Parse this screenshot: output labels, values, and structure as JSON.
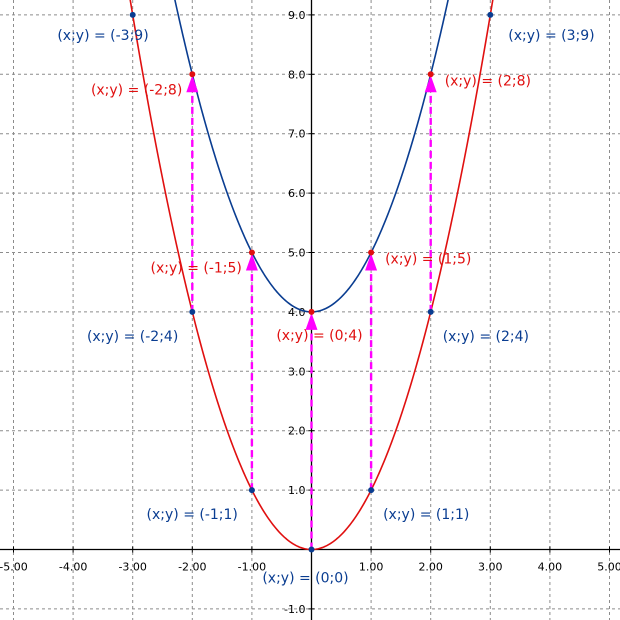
{
  "chart_data": {
    "type": "line",
    "title": "",
    "xlabel": "",
    "ylabel": "",
    "xlim": [
      -5,
      5
    ],
    "ylim": [
      -1.2,
      9.25
    ],
    "grid": true,
    "x_ticks": [
      -5,
      -4,
      -3,
      -2,
      -1,
      1,
      2,
      3,
      4,
      5
    ],
    "x_tick_labels": [
      "-5.00",
      "-4.00",
      "-3.00",
      "-2.00",
      "-1.00",
      "1.00",
      "2.00",
      "3.00",
      "4.00",
      "5.00"
    ],
    "y_ticks": [
      -1,
      1,
      2,
      3,
      4,
      5,
      6,
      7,
      8,
      9
    ],
    "y_tick_labels": [
      "-1.0",
      "1.0",
      "2.0",
      "3.0",
      "4.0",
      "5.0",
      "6.0",
      "7.0",
      "8.0",
      "9.0"
    ],
    "series": [
      {
        "key": "red_curve",
        "color": "#e01010",
        "x_range": [
          -3.1,
          3.1
        ],
        "coeff": 1,
        "offset": 0,
        "points": [
          {
            "x": -2,
            "y": 8,
            "label": "(x;y) = (-2;8)"
          },
          {
            "x": -1,
            "y": 5,
            "label": "(x;y) = (-1;5)"
          },
          {
            "x": 0,
            "y": 4,
            "label": "(x;y) = (0;4)"
          },
          {
            "x": 1,
            "y": 5,
            "label": "(x;y) = (1;5)"
          },
          {
            "x": 2,
            "y": 8,
            "label": "(x;y) = (2;8)"
          }
        ]
      },
      {
        "key": "blue_curve",
        "color": "#0a3d91",
        "x_range": [
          -2.4,
          2.4
        ],
        "coeff": 1,
        "offset": 4,
        "points": [
          {
            "x": -3,
            "y": 9,
            "label": "(x;y) = (-3;9)"
          },
          {
            "x": 3,
            "y": 9,
            "label": "(x;y) = (3;9)"
          },
          {
            "x": -2,
            "y": 4,
            "label": "(x;y) = (-2;4)"
          },
          {
            "x": 2,
            "y": 4,
            "label": "(x;y) = (2;4)"
          },
          {
            "x": -1,
            "y": 1,
            "label": "(x;y) = (-1;1)"
          },
          {
            "x": 1,
            "y": 1,
            "label": "(x;y) = (1;1)"
          },
          {
            "x": 0,
            "y": 0,
            "label": "(x;y) = (0;0)"
          }
        ]
      }
    ],
    "arrows": {
      "color": "#ff00ff",
      "segments": [
        {
          "x": -2,
          "from": 4,
          "to": 8
        },
        {
          "x": -1,
          "from": 1,
          "to": 5
        },
        {
          "x": 0,
          "from": 0,
          "to": 4
        },
        {
          "x": 1,
          "from": 1,
          "to": 5
        },
        {
          "x": 2,
          "from": 4,
          "to": 8
        }
      ]
    }
  }
}
